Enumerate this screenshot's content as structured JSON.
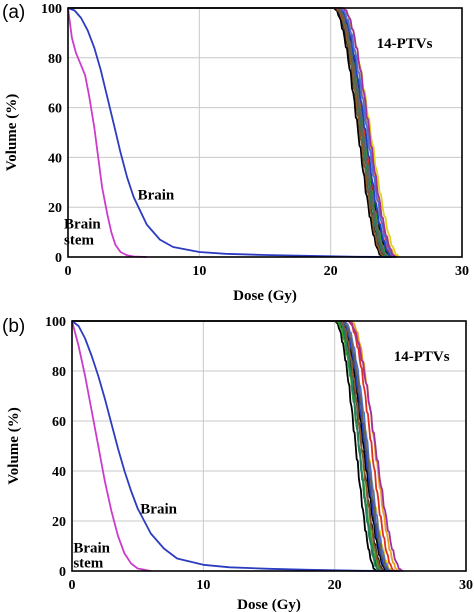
{
  "chart_data": [
    {
      "type": "line",
      "panel_label": "(a)",
      "xlabel": "Dose (Gy)",
      "ylabel": "Volume (%)",
      "xlim": [
        0,
        30
      ],
      "ylim": [
        0,
        100
      ],
      "xticks": [
        "0",
        "10",
        "20",
        "30"
      ],
      "yticks": [
        "0",
        "20",
        "40",
        "60",
        "80",
        "100"
      ],
      "grid": true,
      "annotations": [
        {
          "text": "14-PTVs",
          "x": 23.5,
          "y": 84
        },
        {
          "text": "Brain",
          "x": 5.3,
          "y": 23
        },
        {
          "text": "Brain",
          "x": -0.3,
          "y": 11.5
        },
        {
          "text": "stem",
          "x": -0.3,
          "y": 5
        }
      ],
      "series": [
        {
          "color": "#2c3cc0",
          "x": [
            0,
            0.5,
            1,
            1.5,
            2,
            2.5,
            3,
            3.5,
            4,
            4.5,
            5,
            6,
            7,
            8,
            10,
            12,
            15,
            18,
            20,
            22,
            25
          ],
          "y": [
            100,
            99,
            96,
            91,
            84,
            75,
            64,
            53,
            42,
            32,
            24,
            13,
            7,
            4,
            2,
            1.3,
            0.8,
            0.5,
            0.3,
            0.1,
            0
          ]
        },
        {
          "color": "#cc3ccc",
          "x": [
            0,
            0.3,
            0.6,
            1,
            1.3,
            1.6,
            2,
            2.3,
            2.6,
            3,
            3.3,
            3.6,
            4,
            4.5,
            5,
            6
          ],
          "y": [
            100,
            88,
            82,
            77,
            73,
            65,
            52,
            40,
            28,
            17,
            10,
            5,
            2,
            0.7,
            0.2,
            0
          ]
        }
      ],
      "ptv_curves": {
        "count": 14,
        "colors": [
          "#000000",
          "#1a1a1a",
          "#222222",
          "#000000",
          "#e03020",
          "#e8a020",
          "#e0d020",
          "#30a030",
          "#208060",
          "#2040c0",
          "#5070d0",
          "#a030a0",
          "#8a5a2a",
          "#606060"
        ],
        "d100": [
          20.2,
          20.3,
          20.4,
          20.5,
          20.3,
          20.6,
          20.8,
          20.5,
          20.4,
          20.6,
          20.7,
          20.9,
          20.4,
          20.5
        ],
        "d0": [
          24.0,
          24.2,
          24.4,
          24.6,
          24.8,
          25.1,
          25.3,
          24.5,
          24.3,
          24.7,
          24.9,
          25.0,
          24.1,
          24.4
        ]
      }
    },
    {
      "type": "line",
      "panel_label": "(b)",
      "xlabel": "Dose (Gy)",
      "ylabel": "Volume (%)",
      "xlim": [
        0,
        30
      ],
      "ylim": [
        0,
        100
      ],
      "xticks": [
        "0",
        "10",
        "20",
        "30"
      ],
      "yticks": [
        "0",
        "20",
        "40",
        "60",
        "80",
        "100"
      ],
      "grid": true,
      "annotations": [
        {
          "text": "14-PTVs",
          "x": 24.5,
          "y": 84
        },
        {
          "text": "Brain",
          "x": 5.2,
          "y": 23
        },
        {
          "text": "Brain",
          "x": 0.1,
          "y": 7.5
        },
        {
          "text": "stem",
          "x": 0.1,
          "y": 1.5
        }
      ],
      "series": [
        {
          "color": "#2c3cc0",
          "x": [
            0,
            0.5,
            1,
            1.5,
            2,
            2.5,
            3,
            3.5,
            4,
            4.5,
            5,
            6,
            7,
            8,
            10,
            12,
            15,
            18,
            20,
            22,
            25
          ],
          "y": [
            100,
            98,
            93,
            86,
            78,
            69,
            59,
            49,
            40,
            32,
            25,
            15,
            9,
            5,
            2.5,
            1.5,
            0.9,
            0.5,
            0.3,
            0.1,
            0
          ]
        },
        {
          "color": "#cc3ccc",
          "x": [
            0,
            0.5,
            1,
            1.5,
            2,
            2.5,
            3,
            3.5,
            4,
            4.5,
            5,
            6
          ],
          "y": [
            100,
            90,
            78,
            64,
            50,
            36,
            24,
            14,
            7,
            3,
            1,
            0
          ]
        }
      ],
      "ptv_curves": {
        "count": 14,
        "colors": [
          "#000000",
          "#1a1a1a",
          "#222222",
          "#000000",
          "#e03020",
          "#e8a020",
          "#e0d020",
          "#30a030",
          "#208060",
          "#2040c0",
          "#5070d0",
          "#a030a0",
          "#8a5a2a",
          "#606060"
        ],
        "d100": [
          20.0,
          20.2,
          20.3,
          20.4,
          21.0,
          21.2,
          20.6,
          20.1,
          20.3,
          20.5,
          20.7,
          21.0,
          20.4,
          20.6
        ],
        "d0": [
          23.2,
          23.5,
          23.8,
          24.0,
          24.6,
          24.9,
          24.4,
          23.6,
          23.4,
          24.1,
          24.3,
          25.2,
          23.7,
          24.2
        ]
      }
    }
  ]
}
